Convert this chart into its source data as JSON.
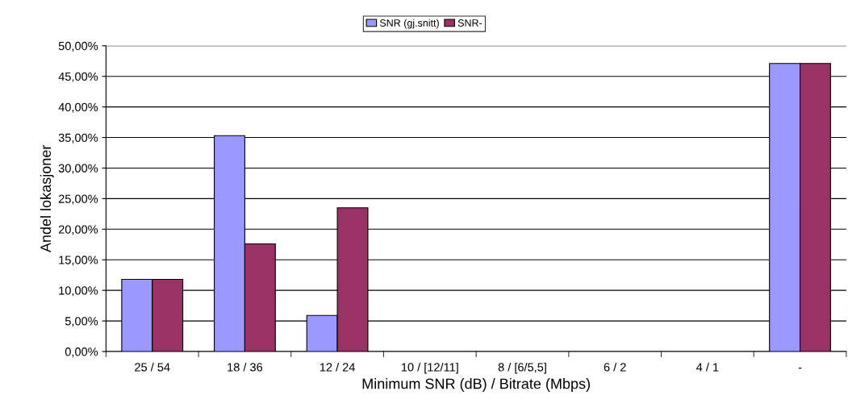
{
  "chart_data": {
    "type": "bar",
    "xlabel": "Minimum SNR (dB) / Bitrate (Mbps)",
    "ylabel": "Andel lokasjoner",
    "categories": [
      "25 / 54",
      "18 / 36",
      "12 / 24",
      "10 / [12/11]",
      "8 / [6/5,5]",
      "6 / 2",
      "4 / 1",
      "-"
    ],
    "series": [
      {
        "name": "SNR (gj.snitt)",
        "color": "#9999ff",
        "values": [
          11.8,
          35.3,
          5.9,
          0,
          0,
          0,
          0,
          47.1
        ]
      },
      {
        "name": "SNR-",
        "color": "#993366",
        "values": [
          11.8,
          17.6,
          23.5,
          0,
          0,
          0,
          0,
          47.1
        ]
      }
    ],
    "ylim": [
      0,
      50
    ],
    "yticks": [
      {
        "value": 0,
        "label": "0,00%"
      },
      {
        "value": 5,
        "label": "5,00%"
      },
      {
        "value": 10,
        "label": "10,00%"
      },
      {
        "value": 15,
        "label": "15,00%"
      },
      {
        "value": 20,
        "label": "20,00%"
      },
      {
        "value": 25,
        "label": "25,00%"
      },
      {
        "value": 30,
        "label": "30,00%"
      },
      {
        "value": 35,
        "label": "35,00%"
      },
      {
        "value": 40,
        "label": "40,00%"
      },
      {
        "value": 45,
        "label": "45,00%"
      },
      {
        "value": 50,
        "label": "50,00%"
      }
    ],
    "grid": "y",
    "legend": "top"
  }
}
